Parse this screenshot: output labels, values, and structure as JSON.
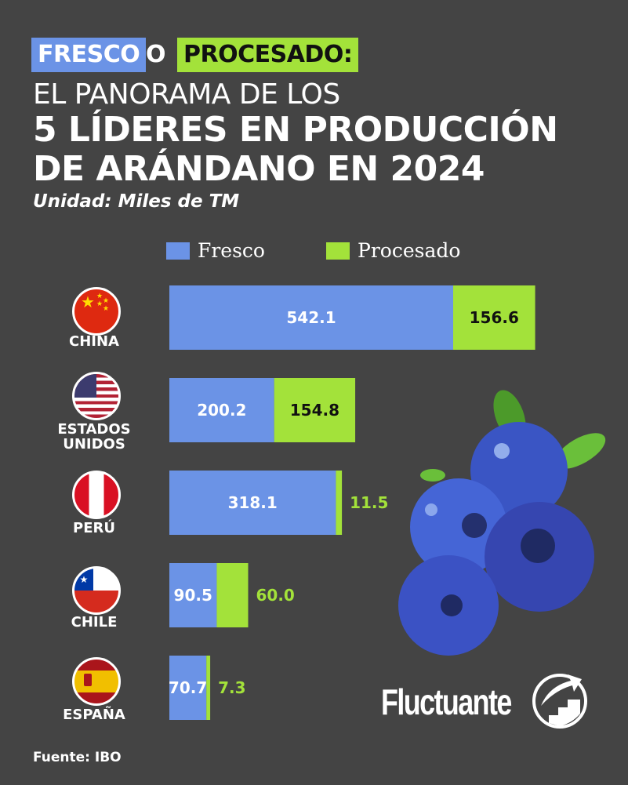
{
  "header": {
    "tag_fresco": "FRESCO",
    "connector": "O",
    "tag_procesado": "PROCESADO:",
    "line1": "EL PANORAMA DE LOS",
    "line2": "5 LÍDERES EN PRODUCCIÓN",
    "line3": "DE ARÁNDANO EN 2024",
    "unit": "Unidad: Miles de TM"
  },
  "footer": {
    "source": "Fuente: IBO",
    "brand": "Fluctuante"
  },
  "colors": {
    "background": "#444444",
    "fresco": "#6b93e6",
    "procesado": "#a3e23a"
  },
  "chart_data": {
    "type": "bar",
    "orientation": "horizontal-stacked",
    "title": "EL PANORAMA DE LOS 5 LÍDERES EN PRODUCCIÓN DE ARÁNDANO EN 2024",
    "unit": "Miles de TM",
    "categories": [
      "CHINA",
      "ESTADOS UNIDOS",
      "PERÚ",
      "CHILE",
      "ESPAÑA"
    ],
    "series": [
      {
        "name": "Fresco",
        "color": "#6b93e6",
        "values": [
          542.1,
          200.2,
          318.1,
          90.5,
          70.7
        ],
        "labels": [
          "542.1",
          "200.2",
          "318.1",
          "90.5",
          "70.7"
        ]
      },
      {
        "name": "Procesado",
        "color": "#a3e23a",
        "values": [
          156.6,
          154.8,
          11.5,
          60.0,
          7.3
        ],
        "labels": [
          "156.6",
          "154.8",
          "11.5",
          "60.0",
          "7.3"
        ]
      }
    ],
    "legend": [
      "Fresco",
      "Procesado"
    ],
    "legend_position": "top",
    "grid": false
  }
}
